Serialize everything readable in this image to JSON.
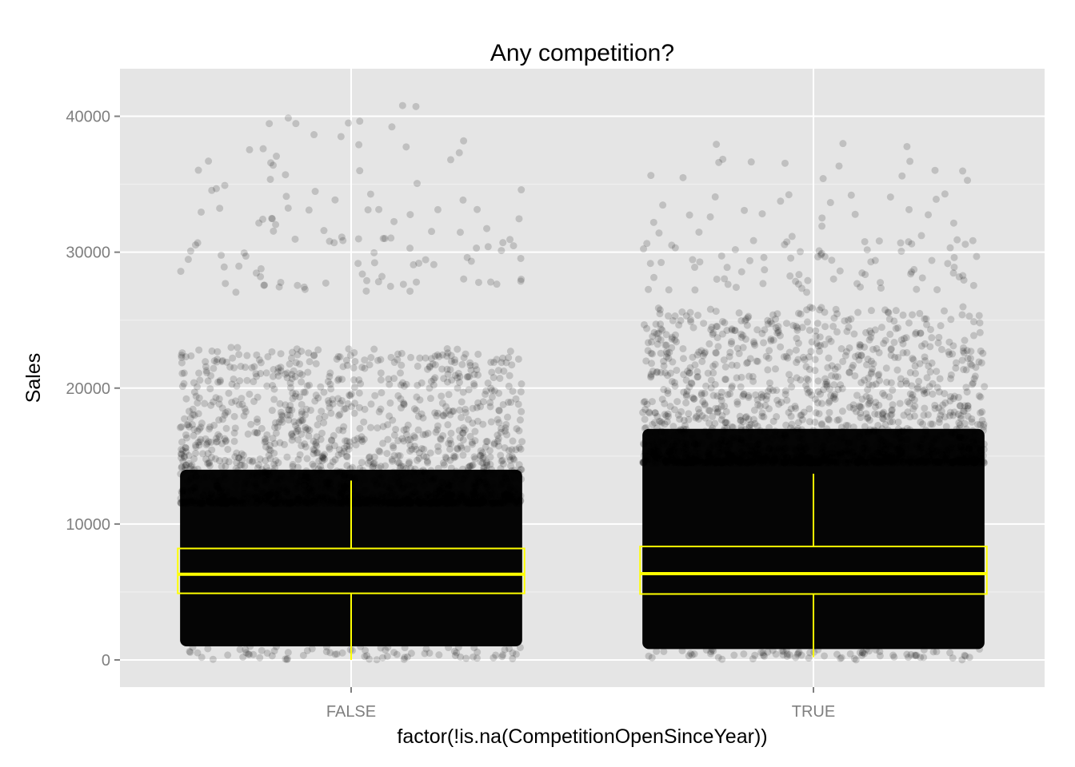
{
  "chart_data": {
    "type": "box",
    "title": "Any competition?",
    "xlabel": "factor(!is.na(CompetitionOpenSinceYear))",
    "ylabel": "Sales",
    "categories": [
      "FALSE",
      "TRUE"
    ],
    "y_ticks": [
      "0",
      "10000",
      "20000",
      "30000",
      "40000"
    ],
    "y_tick_values": [
      0,
      10000,
      20000,
      30000,
      40000
    ],
    "ylim": [
      -2000,
      43500
    ],
    "grid": true,
    "colors": {
      "panel": "#e5e5e5",
      "grid": "#ffffff",
      "points": "#000000",
      "box": "#ffff00"
    },
    "boxes": [
      {
        "category": "FALSE",
        "lower_whisker": 0,
        "q1": 4900,
        "median": 6300,
        "q3": 8200,
        "upper_whisker": 13200
      },
      {
        "category": "TRUE",
        "lower_whisker": 200,
        "q1": 4850,
        "median": 6350,
        "q3": 8350,
        "upper_whisker": 13700
      }
    ],
    "point_density": [
      {
        "category": "FALSE",
        "dense_low": 1000,
        "dense_high": 14000,
        "max_visible": 41600
      },
      {
        "category": "TRUE",
        "dense_low": 800,
        "dense_high": 17000,
        "max_visible": 38800
      }
    ]
  }
}
